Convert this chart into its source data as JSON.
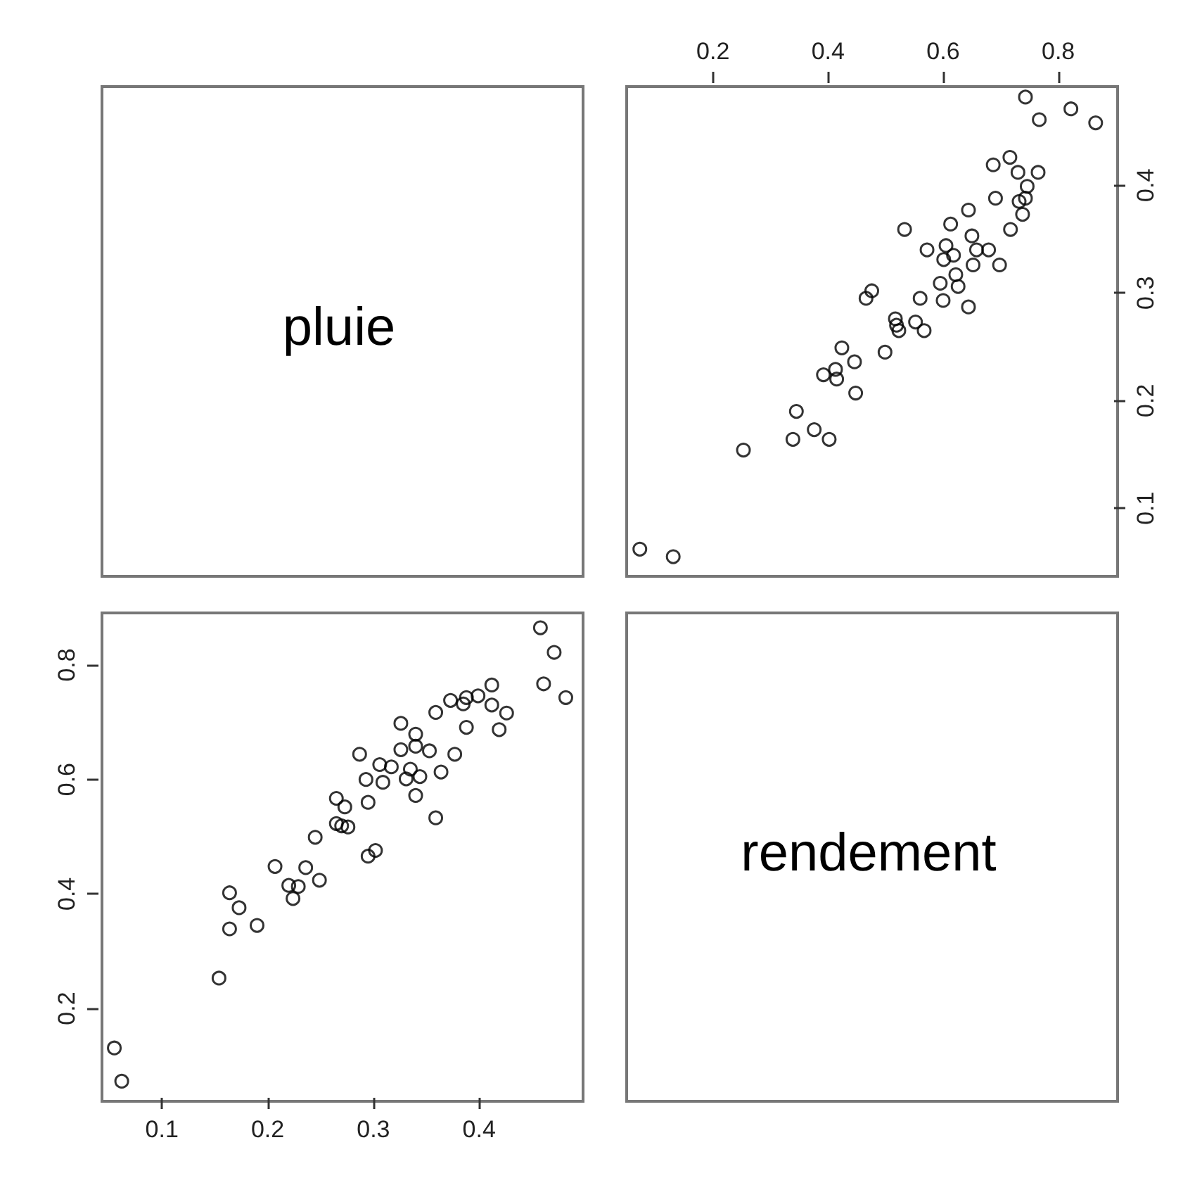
{
  "chart_data": [
    {
      "type": "other",
      "title": "pluie"
    },
    {
      "type": "scatter",
      "marker": "circle",
      "xlim": [
        0.044,
        0.897
      ],
      "ylim": [
        0.04,
        0.495
      ],
      "xticks": [
        0.2,
        0.4,
        0.6,
        0.8
      ],
      "yticks": [
        0.1,
        0.2,
        0.3,
        0.4
      ],
      "series": [
        {
          "color": "#000000",
          "x": [
            0.131,
            0.073,
            0.253,
            0.402,
            0.376,
            0.339,
            0.345,
            0.448,
            0.415,
            0.392,
            0.413,
            0.446,
            0.424,
            0.499,
            0.567,
            0.552,
            0.523,
            0.519,
            0.517,
            0.644,
            0.56,
            0.6,
            0.466,
            0.476,
            0.626,
            0.595,
            0.622,
            0.698,
            0.652,
            0.601,
            0.618,
            0.679,
            0.658,
            0.605,
            0.572,
            0.65,
            0.533,
            0.717,
            0.613,
            0.738,
            0.644,
            0.732,
            0.691,
            0.743,
            0.746,
            0.765,
            0.73,
            0.687,
            0.716,
            0.865,
            0.822,
            0.767,
            0.743
          ],
          "values": [
            0.055,
            0.062,
            0.154,
            0.164,
            0.173,
            0.164,
            0.19,
            0.207,
            0.22,
            0.224,
            0.229,
            0.236,
            0.249,
            0.245,
            0.265,
            0.273,
            0.265,
            0.27,
            0.276,
            0.287,
            0.295,
            0.293,
            0.295,
            0.302,
            0.306,
            0.309,
            0.317,
            0.326,
            0.326,
            0.331,
            0.335,
            0.34,
            0.34,
            0.344,
            0.34,
            0.353,
            0.359,
            0.359,
            0.364,
            0.373,
            0.377,
            0.385,
            0.388,
            0.388,
            0.399,
            0.412,
            0.412,
            0.419,
            0.426,
            0.458,
            0.471,
            0.461,
            0.482
          ]
        }
      ]
    },
    {
      "type": "scatter",
      "marker": "circle",
      "xlim": [
        0.04,
        0.495
      ],
      "ylim": [
        0.044,
        0.897
      ],
      "xticks": [
        0.1,
        0.2,
        0.3,
        0.4
      ],
      "yticks": [
        0.2,
        0.4,
        0.6,
        0.8
      ],
      "series": [
        {
          "color": "#000000",
          "x": [
            0.055,
            0.062,
            0.154,
            0.164,
            0.173,
            0.164,
            0.19,
            0.207,
            0.22,
            0.224,
            0.229,
            0.236,
            0.249,
            0.245,
            0.265,
            0.273,
            0.265,
            0.27,
            0.276,
            0.287,
            0.295,
            0.293,
            0.295,
            0.302,
            0.306,
            0.309,
            0.317,
            0.326,
            0.326,
            0.331,
            0.335,
            0.34,
            0.34,
            0.344,
            0.34,
            0.353,
            0.359,
            0.359,
            0.364,
            0.373,
            0.377,
            0.385,
            0.388,
            0.388,
            0.399,
            0.412,
            0.412,
            0.419,
            0.426,
            0.458,
            0.471,
            0.461,
            0.482
          ],
          "values": [
            0.131,
            0.073,
            0.253,
            0.402,
            0.376,
            0.339,
            0.345,
            0.448,
            0.415,
            0.392,
            0.413,
            0.446,
            0.424,
            0.499,
            0.567,
            0.552,
            0.523,
            0.519,
            0.517,
            0.644,
            0.56,
            0.6,
            0.466,
            0.476,
            0.626,
            0.595,
            0.622,
            0.698,
            0.652,
            0.601,
            0.618,
            0.679,
            0.658,
            0.605,
            0.572,
            0.65,
            0.533,
            0.717,
            0.613,
            0.738,
            0.644,
            0.732,
            0.691,
            0.743,
            0.746,
            0.765,
            0.73,
            0.687,
            0.716,
            0.865,
            0.822,
            0.767,
            0.743
          ]
        }
      ]
    },
    {
      "type": "other",
      "title": "rendement"
    }
  ]
}
